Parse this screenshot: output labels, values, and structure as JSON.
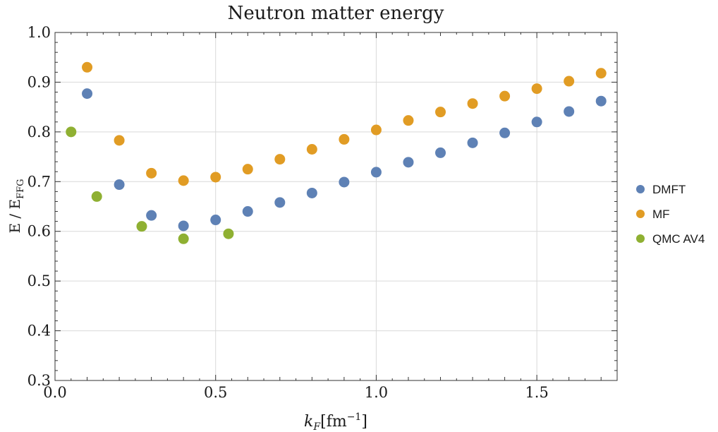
{
  "chart_data": {
    "type": "scatter",
    "title": "Neutron matter energy",
    "xlabel": {
      "main": "k",
      "sub": "F",
      "unit": "[fm",
      "sup": "−1",
      "close": "]"
    },
    "ylabel": {
      "main": "E / E",
      "sub": "FFG"
    },
    "xlim": [
      0.0,
      1.75
    ],
    "ylim": [
      0.3,
      1.0
    ],
    "x_ticks": [
      {
        "value": 0.0,
        "label": "0.0"
      },
      {
        "value": 0.5,
        "label": "0.5"
      },
      {
        "value": 1.0,
        "label": "1.0"
      },
      {
        "value": 1.5,
        "label": "1.5"
      }
    ],
    "y_ticks": [
      {
        "value": 0.3,
        "label": "0.3"
      },
      {
        "value": 0.4,
        "label": "0.4"
      },
      {
        "value": 0.5,
        "label": "0.5"
      },
      {
        "value": 0.6,
        "label": "0.6"
      },
      {
        "value": 0.7,
        "label": "0.7"
      },
      {
        "value": 0.8,
        "label": "0.8"
      },
      {
        "value": 0.9,
        "label": "0.9"
      },
      {
        "value": 1.0,
        "label": "1.0"
      }
    ],
    "grid": true,
    "legend_position": "right",
    "series": [
      {
        "name": "DMFT",
        "color": "#5e81b5",
        "points": [
          [
            0.1,
            0.877
          ],
          [
            0.2,
            0.694
          ],
          [
            0.3,
            0.632
          ],
          [
            0.4,
            0.611
          ],
          [
            0.5,
            0.623
          ],
          [
            0.6,
            0.64
          ],
          [
            0.7,
            0.658
          ],
          [
            0.8,
            0.677
          ],
          [
            0.9,
            0.699
          ],
          [
            1.0,
            0.719
          ],
          [
            1.1,
            0.739
          ],
          [
            1.2,
            0.758
          ],
          [
            1.3,
            0.778
          ],
          [
            1.4,
            0.798
          ],
          [
            1.5,
            0.82
          ],
          [
            1.6,
            0.841
          ],
          [
            1.7,
            0.862
          ]
        ]
      },
      {
        "name": "MF",
        "color": "#e19c24",
        "points": [
          [
            0.1,
            0.93
          ],
          [
            0.2,
            0.783
          ],
          [
            0.3,
            0.717
          ],
          [
            0.4,
            0.702
          ],
          [
            0.5,
            0.709
          ],
          [
            0.6,
            0.725
          ],
          [
            0.7,
            0.745
          ],
          [
            0.8,
            0.765
          ],
          [
            0.9,
            0.785
          ],
          [
            1.0,
            0.804
          ],
          [
            1.1,
            0.823
          ],
          [
            1.2,
            0.84
          ],
          [
            1.3,
            0.857
          ],
          [
            1.4,
            0.872
          ],
          [
            1.5,
            0.887
          ],
          [
            1.6,
            0.902
          ],
          [
            1.7,
            0.918
          ]
        ]
      },
      {
        "name": "QMC AV4",
        "color": "#8fb032",
        "points": [
          [
            0.05,
            0.8
          ],
          [
            0.13,
            0.67
          ],
          [
            0.27,
            0.61
          ],
          [
            0.4,
            0.585
          ],
          [
            0.54,
            0.595
          ]
        ]
      }
    ]
  }
}
